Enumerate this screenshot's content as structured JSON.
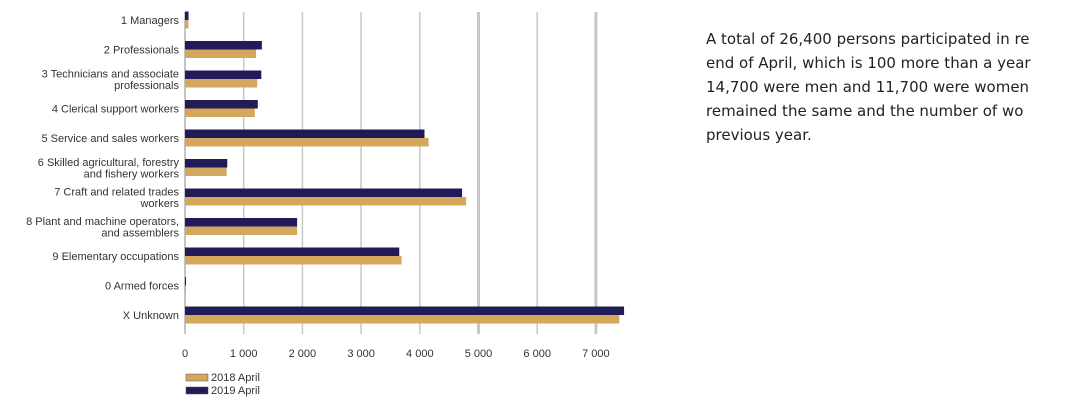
{
  "chart_data": {
    "type": "bar",
    "orientation": "horizontal",
    "categories": [
      [
        "1 Managers"
      ],
      [
        "2 Professionals"
      ],
      [
        "3 Technicians and associate",
        "professionals"
      ],
      [
        "4 Clerical support workers"
      ],
      [
        "5 Service and sales workers"
      ],
      [
        "6 Skilled agricultural, forestry",
        "and fishery workers"
      ],
      [
        "7 Craft and related trades",
        "workers"
      ],
      [
        "8 Plant and machine operators,",
        "and assemblers"
      ],
      [
        "9 Elementary occupations"
      ],
      [
        "0 Armed forces"
      ],
      [
        "X Unknown"
      ]
    ],
    "series": [
      {
        "name": "2019 April",
        "color": "#211c58",
        "values": [
          60,
          1310,
          1300,
          1240,
          4080,
          720,
          4720,
          1910,
          3650,
          10,
          7480
        ]
      },
      {
        "name": "2018 April",
        "color": "#d4a85c",
        "values": [
          60,
          1210,
          1230,
          1190,
          4150,
          710,
          4790,
          1910,
          3690,
          10,
          7400
        ]
      }
    ],
    "xticks": [
      "0",
      "1 000",
      "2 000",
      "3 000",
      "4 000",
      "5 000",
      "6 000",
      "7 000"
    ],
    "xlim": [
      0,
      7500
    ],
    "grid": true,
    "legend": {
      "placement": "bottom-left",
      "order": [
        "2018 April",
        "2019 April"
      ]
    }
  },
  "side_text": {
    "lines": [
      "A total of 26,400 persons participated in re",
      "end of April, which is 100 more than a year",
      "14,700 were men and 11,700 were women",
      "remained the same and the number of wo",
      "previous year."
    ]
  }
}
